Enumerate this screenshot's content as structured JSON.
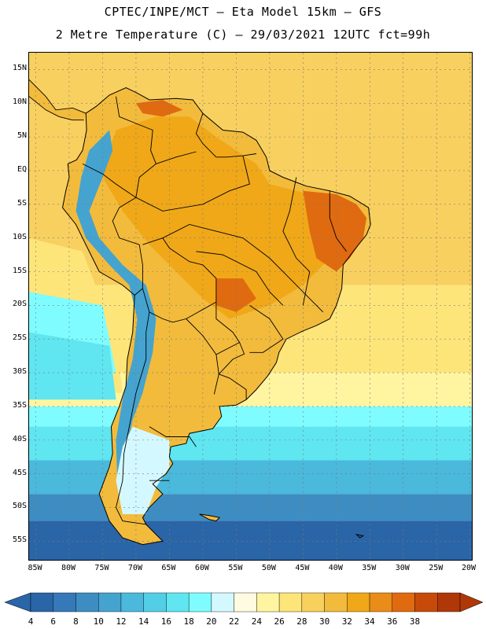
{
  "header": {
    "line1": "CPTEC/INPE/MCT –  Eta Model 15km – GFS",
    "line2": "2 Metre Temperature (C) – 29/03/2021 12UTC fct=99h"
  },
  "map": {
    "lon_range": [
      -86,
      -19.5
    ],
    "lat_range": [
      17.5,
      -58
    ],
    "lat_ticks": [
      "15N",
      "10N",
      "5N",
      "EQ",
      "5S",
      "10S",
      "15S",
      "20S",
      "25S",
      "30S",
      "35S",
      "40S",
      "45S",
      "50S",
      "55S"
    ],
    "lat_values": [
      15,
      10,
      5,
      0,
      -5,
      -10,
      -15,
      -20,
      -25,
      -30,
      -35,
      -40,
      -45,
      -50,
      -55
    ],
    "lon_ticks": [
      "85W",
      "80W",
      "75W",
      "70W",
      "65W",
      "60W",
      "55W",
      "50W",
      "45W",
      "40W",
      "35W",
      "30W",
      "25W",
      "20W"
    ],
    "lon_values": [
      -85,
      -80,
      -75,
      -70,
      -65,
      -60,
      -55,
      -50,
      -45,
      -40,
      -35,
      -30,
      -25,
      -20
    ]
  },
  "colorbar": {
    "labels": [
      "4",
      "6",
      "8",
      "10",
      "12",
      "14",
      "16",
      "18",
      "20",
      "22",
      "24",
      "26",
      "28",
      "30",
      "32",
      "34",
      "36",
      "38"
    ],
    "colors": [
      "#2a65a8",
      "#3579b8",
      "#3d8dc3",
      "#45a3cf",
      "#4ab9dc",
      "#52cfe6",
      "#5fe6f0",
      "#7ffcff",
      "#d4f8ff",
      "#fffbe0",
      "#fff5a0",
      "#fde57a",
      "#f8d05c",
      "#f2bb3c",
      "#f0a818",
      "#ea8c18",
      "#e06a10",
      "#c84a0a",
      "#b03808"
    ],
    "left_arrow_color": "#2a65a8",
    "right_arrow_color": "#b03808"
  },
  "field_colors": {
    "ocean_tropical": "#f8d060",
    "ocean_mid": "#fde57a",
    "ocean_cool": "#fff5a0",
    "ocean_cold1": "#7ffcff",
    "ocean_cold2": "#5fe6f0",
    "ocean_cold3": "#4ab9dc",
    "ocean_cold4": "#3d8dc3",
    "ocean_cold5": "#2a65a8",
    "land_hot": "#f0a818",
    "land_warm": "#f2bb3c",
    "land_very_hot": "#e06a10",
    "andes": "#45a3cf",
    "patagonia": "#d4f8ff",
    "grid": "#7a7a7a",
    "borders": "#000000"
  }
}
